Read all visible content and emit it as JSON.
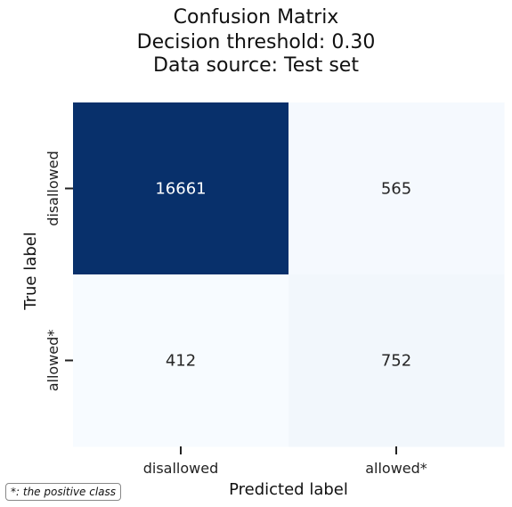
{
  "chart_data": {
    "type": "heatmap",
    "title": [
      "Confusion Matrix",
      "Decision threshold: 0.30",
      "Data source: Test set"
    ],
    "xlabel": "Predicted label",
    "ylabel": "True label",
    "x_categories": [
      "disallowed",
      "allowed*"
    ],
    "y_categories": [
      "disallowed",
      "allowed*"
    ],
    "values": [
      [
        16661,
        565
      ],
      [
        412,
        752
      ]
    ],
    "colormap": "Blues",
    "colorbar": false
  },
  "footnote": "*: the positive class",
  "colors": {
    "low": "#f7fbff",
    "high": "#08306b",
    "text_dark": "#262626",
    "text_light": "#ffffff"
  }
}
